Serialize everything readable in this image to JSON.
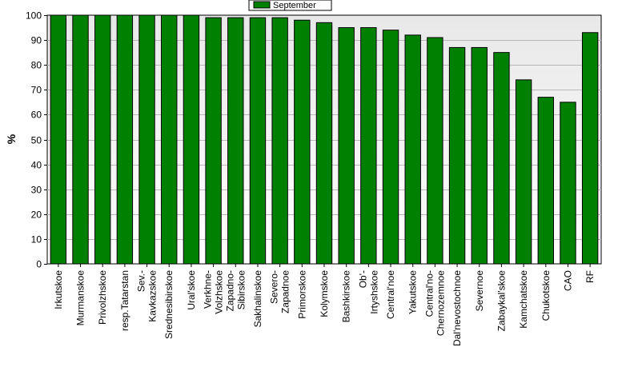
{
  "chart_data": {
    "type": "bar",
    "title": "",
    "xlabel": "",
    "ylabel": "%",
    "ylim": [
      0,
      100
    ],
    "yticks": [
      0,
      10,
      20,
      30,
      40,
      50,
      60,
      70,
      80,
      90,
      100
    ],
    "grid": true,
    "legend_position": "top-center",
    "series": [
      {
        "name": "September",
        "color": "#008000",
        "values": [
          100,
          100,
          100,
          100,
          100,
          100,
          100,
          99,
          99,
          99,
          99,
          98,
          97,
          95,
          95,
          94,
          92,
          91,
          87,
          87,
          85,
          74,
          67,
          65,
          93
        ]
      }
    ],
    "categories": [
      [
        "Irkutskoe"
      ],
      [
        "Murmanskoe"
      ],
      [
        "Privolzhskoe"
      ],
      [
        "resp.Tatarstan"
      ],
      [
        "Sev.-",
        "Kavkazskoe"
      ],
      [
        "Srednesibirskoe"
      ],
      [
        "Ural'skoe"
      ],
      [
        "Verkhne-",
        "Volzhskoe"
      ],
      [
        "Zapadno-",
        "Sibirskoe"
      ],
      [
        "Sakhalinskoe"
      ],
      [
        "Severo-",
        "Zapadnoe"
      ],
      [
        "Primorskoe"
      ],
      [
        "Kolymskoe"
      ],
      [
        "Bashkirskoe"
      ],
      [
        "Ob'-",
        "Irtyshskoe"
      ],
      [
        "Central'noe"
      ],
      [
        "Yakutskoe"
      ],
      [
        "Central'no-",
        "Chernozemnoe"
      ],
      [
        "Dal'nevostochnoe"
      ],
      [
        "Severnoe"
      ],
      [
        "Zabaykal'skoe"
      ],
      [
        "Kamchatskoe"
      ],
      [
        "Chukotskoe"
      ],
      [
        "CAO"
      ],
      [
        "RF"
      ]
    ]
  }
}
